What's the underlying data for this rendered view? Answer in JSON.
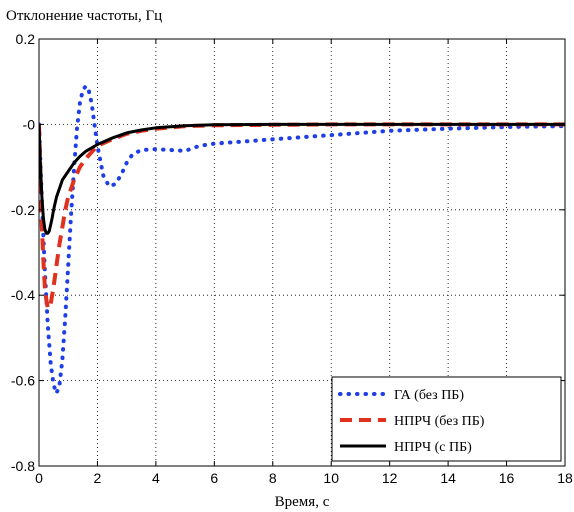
{
  "chart_data": {
    "type": "line",
    "title": "Отклонение частоты, Гц",
    "xlabel": "Время, с",
    "ylabel": "",
    "xlim": [
      0,
      18
    ],
    "ylim": [
      -0.8,
      0.2
    ],
    "xticks": [
      0,
      2,
      4,
      6,
      8,
      10,
      12,
      14,
      16,
      18
    ],
    "xtick_labels": [
      "0",
      "2",
      "4",
      "6",
      "8",
      "10",
      "12",
      "14",
      "16",
      "18"
    ],
    "yticks": [
      0.2,
      0,
      -0.2,
      -0.4,
      -0.6,
      -0.8
    ],
    "ytick_labels": [
      "0.2",
      "-0",
      "-0.2",
      "-0.4",
      "-0.6",
      "-0.8"
    ],
    "grid": true,
    "legend_position": "bottom-right",
    "series": [
      {
        "name": "ГА (без ПБ)",
        "color": "#1f3fe6",
        "style": "dotted",
        "x": [
          0,
          0.1,
          0.2,
          0.3,
          0.4,
          0.5,
          0.6,
          0.7,
          0.8,
          0.9,
          1.0,
          1.1,
          1.2,
          1.3,
          1.4,
          1.5,
          1.6,
          1.7,
          1.8,
          1.9,
          2.0,
          2.2,
          2.4,
          2.6,
          2.8,
          3.0,
          3.2,
          3.5,
          4.0,
          4.5,
          5.0,
          5.5,
          6.0,
          7.0,
          8.0,
          10.0,
          12.0,
          14.0,
          16.0,
          18.0
        ],
        "y": [
          0,
          -0.18,
          -0.34,
          -0.47,
          -0.56,
          -0.61,
          -0.63,
          -0.61,
          -0.55,
          -0.45,
          -0.33,
          -0.21,
          -0.1,
          -0.01,
          0.05,
          0.08,
          0.09,
          0.08,
          0.05,
          0.0,
          -0.05,
          -0.12,
          -0.145,
          -0.14,
          -0.12,
          -0.09,
          -0.07,
          -0.06,
          -0.058,
          -0.06,
          -0.062,
          -0.05,
          -0.045,
          -0.04,
          -0.035,
          -0.025,
          -0.015,
          -0.01,
          -0.006,
          -0.004
        ]
      },
      {
        "name": "НПРЧ (без ПБ)",
        "color": "#e0301e",
        "style": "dashed",
        "x": [
          0,
          0.05,
          0.1,
          0.15,
          0.2,
          0.25,
          0.3,
          0.35,
          0.4,
          0.5,
          0.6,
          0.7,
          0.8,
          0.9,
          1.0,
          1.2,
          1.4,
          1.6,
          1.8,
          2.0,
          2.5,
          3.0,
          3.5,
          4.0,
          5.0,
          6.0,
          8.0,
          10.0,
          14.0,
          18.0
        ],
        "y": [
          0,
          -0.12,
          -0.24,
          -0.32,
          -0.38,
          -0.41,
          -0.43,
          -0.43,
          -0.42,
          -0.38,
          -0.33,
          -0.28,
          -0.24,
          -0.2,
          -0.17,
          -0.13,
          -0.1,
          -0.08,
          -0.065,
          -0.05,
          -0.035,
          -0.022,
          -0.015,
          -0.01,
          -0.004,
          -0.002,
          -0.001,
          0,
          0,
          0
        ]
      },
      {
        "name": "НПРЧ (с ПБ)",
        "color": "#000000",
        "style": "solid",
        "x": [
          0,
          0.05,
          0.1,
          0.15,
          0.2,
          0.25,
          0.3,
          0.35,
          0.4,
          0.45,
          0.5,
          0.6,
          0.7,
          0.8,
          1.0,
          1.2,
          1.4,
          1.6,
          1.8,
          2.0,
          2.5,
          3.0,
          3.5,
          4.0,
          5.0,
          6.0,
          8.0,
          10.0,
          14.0,
          18.0
        ],
        "y": [
          0,
          -0.1,
          -0.17,
          -0.22,
          -0.245,
          -0.255,
          -0.255,
          -0.25,
          -0.235,
          -0.22,
          -0.2,
          -0.17,
          -0.15,
          -0.13,
          -0.11,
          -0.09,
          -0.075,
          -0.063,
          -0.055,
          -0.047,
          -0.032,
          -0.02,
          -0.013,
          -0.008,
          -0.003,
          -0.001,
          0,
          0,
          0,
          0
        ]
      }
    ]
  }
}
